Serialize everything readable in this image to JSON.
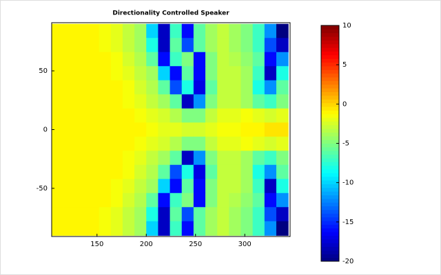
{
  "chart_data": {
    "type": "heatmap",
    "title": "Directionality Controlled Speaker",
    "colormap": "jet",
    "x": [
      110,
      122,
      134,
      146,
      158,
      170,
      182,
      194,
      206,
      218,
      230,
      242,
      254,
      266,
      278,
      290,
      302,
      314,
      326,
      338
    ],
    "y": [
      84,
      72,
      60,
      48,
      36,
      24,
      12,
      0,
      -12,
      -24,
      -36,
      -48,
      -60,
      -72,
      -84
    ],
    "z": [
      [
        -1,
        -1,
        -1,
        -1,
        -1.5,
        -2,
        -3,
        -4,
        -10,
        -18,
        -7,
        -16,
        -6,
        -4,
        -3,
        -4,
        -5,
        -7,
        -12,
        -20
      ],
      [
        -1,
        -1,
        -1,
        -1,
        -1.5,
        -2,
        -3,
        -4,
        -8,
        -18,
        -6,
        -14,
        -6,
        -4,
        -3,
        -4,
        -5,
        -7,
        -14,
        -18
      ],
      [
        -1,
        -1,
        -1,
        -1,
        -1,
        -1.5,
        -2.5,
        -3.5,
        -6,
        -16,
        -7,
        -5,
        -16,
        -5,
        -3,
        -3.5,
        -4.5,
        -6,
        -16,
        -12
      ],
      [
        -1,
        -1,
        -1,
        -1,
        -1,
        -1.5,
        -2,
        -3,
        -4,
        -10,
        -16,
        -6,
        -16,
        -5,
        -3,
        -3,
        -4,
        -7,
        -18,
        -8
      ],
      [
        -1,
        -1,
        -1,
        -1,
        -1,
        -1,
        -1.5,
        -2.5,
        -3.5,
        -6,
        -14,
        -8,
        -17,
        -6,
        -3,
        -3,
        -4,
        -8,
        -12,
        -6
      ],
      [
        -1,
        -1,
        -1,
        -1,
        -1,
        -1,
        -1.5,
        -2,
        -3,
        -4,
        -6,
        -18,
        -12,
        -5,
        -3,
        -3,
        -4,
        -6,
        -7,
        -5
      ],
      [
        -1,
        -1,
        -1,
        -1,
        -1,
        -1,
        -1,
        -1.5,
        -2,
        -2.5,
        -3.5,
        -5,
        -5,
        -3,
        -2,
        -2,
        -1.5,
        -2,
        -2.5,
        -2
      ],
      [
        -1,
        -1,
        -1,
        -1,
        -1,
        -1,
        -1,
        -1,
        -1.5,
        -2,
        -2,
        -2.5,
        -2.5,
        -2,
        -1.5,
        -1.5,
        -1,
        -1,
        -0.5,
        -0.5
      ],
      [
        -1,
        -1,
        -1,
        -1,
        -1,
        -1,
        -1,
        -1.5,
        -2,
        -2.5,
        -3.5,
        -5,
        -5,
        -3,
        -2,
        -2,
        -1.5,
        -2,
        -2.5,
        -2
      ],
      [
        -1,
        -1,
        -1,
        -1,
        -1,
        -1,
        -1.5,
        -2,
        -3,
        -4,
        -6,
        -18,
        -12,
        -5,
        -3,
        -3,
        -4,
        -6,
        -7,
        -5
      ],
      [
        -1,
        -1,
        -1,
        -1,
        -1,
        -1,
        -1.5,
        -2.5,
        -3.5,
        -6,
        -14,
        -8,
        -17,
        -6,
        -3,
        -3,
        -4,
        -8,
        -12,
        -6
      ],
      [
        -1,
        -1,
        -1,
        -1,
        -1,
        -1.5,
        -2,
        -3,
        -4,
        -10,
        -16,
        -6,
        -16,
        -5,
        -3,
        -3,
        -4,
        -7,
        -18,
        -8
      ],
      [
        -1,
        -1,
        -1,
        -1,
        -1,
        -1.5,
        -2.5,
        -3.5,
        -6,
        -16,
        -7,
        -5,
        -16,
        -5,
        -3,
        -3.5,
        -4.5,
        -6,
        -16,
        -12
      ],
      [
        -1,
        -1,
        -1,
        -1,
        -1.5,
        -2,
        -3,
        -4,
        -8,
        -18,
        -6,
        -14,
        -6,
        -4,
        -3,
        -4,
        -5,
        -7,
        -14,
        -18
      ],
      [
        -1,
        -1,
        -1,
        -1,
        -1.5,
        -2,
        -3,
        -4,
        -10,
        -18,
        -7,
        -16,
        -6,
        -4,
        -3,
        -4,
        -5,
        -7,
        -12,
        -20
      ]
    ],
    "xlim": [
      104,
      346
    ],
    "ylim": [
      -91,
      91
    ],
    "xticks": [
      150,
      200,
      250,
      300
    ],
    "yticks": [
      50,
      0,
      -50
    ],
    "clim": [
      -20,
      10
    ],
    "colorbar_ticks": [
      10,
      5,
      0,
      -5,
      -10,
      -15,
      -20
    ]
  }
}
